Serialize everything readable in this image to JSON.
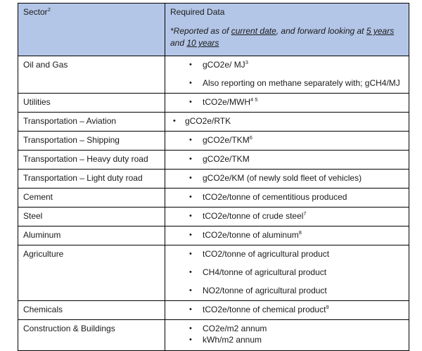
{
  "table": {
    "header_bg": "#b4c6e7",
    "border_color": "#000000",
    "header": {
      "sector_segments": [
        {
          "text": "Sector"
        },
        {
          "text": "2",
          "sup": true
        }
      ],
      "required_data_label": "Required Data",
      "note_segments": [
        {
          "text": "*Reported as of "
        },
        {
          "text": "current date",
          "underline": true
        },
        {
          "text": ", and forward looking at "
        },
        {
          "text": "5 years",
          "underline": true
        },
        {
          "text": " and "
        },
        {
          "text": "10 years",
          "underline": true
        }
      ]
    },
    "rows": [
      {
        "sector": "Oil and Gas",
        "bullets": [
          [
            {
              "text": "gCO2e/ MJ"
            },
            {
              "text": "3",
              "sup": true
            }
          ],
          [
            {
              "text": "Also reporting on methane separately with; gCH4/MJ"
            }
          ]
        ]
      },
      {
        "sector": "Utilities",
        "bullets": [
          [
            {
              "text": "tCO2e/MWH"
            },
            {
              "text": "4 5",
              "sup": true
            }
          ]
        ]
      },
      {
        "sector": "Transportation – Aviation",
        "indent": "small",
        "bullets": [
          [
            {
              "text": "gCO2e/RTK"
            }
          ]
        ]
      },
      {
        "sector": "Transportation – Shipping",
        "bullets": [
          [
            {
              "text": "gCO2e/TKM"
            },
            {
              "text": "6",
              "sup": true
            }
          ]
        ]
      },
      {
        "sector": "Transportation – Heavy duty road",
        "bullets": [
          [
            {
              "text": "gCO2e/TKM"
            }
          ]
        ]
      },
      {
        "sector": "Transportation – Light duty road",
        "bullets": [
          [
            {
              "text": "gCO2e/KM (of newly sold fleet of vehicles)"
            }
          ]
        ]
      },
      {
        "sector": "Cement",
        "bullets": [
          [
            {
              "text": "tCO2e/tonne of cementitious produced"
            }
          ]
        ]
      },
      {
        "sector": "Steel",
        "bullets": [
          [
            {
              "text": "tCO2e/tonne of crude steel"
            },
            {
              "text": "7",
              "sup": true
            }
          ]
        ]
      },
      {
        "sector": "Aluminum",
        "bullets": [
          [
            {
              "text": "tCO2e/tonne of aluminum"
            },
            {
              "text": "8",
              "sup": true
            }
          ]
        ]
      },
      {
        "sector": "Agriculture",
        "bullets": [
          [
            {
              "text": "tCO2/tonne of agricultural product"
            }
          ],
          [
            {
              "text": "CH4/tonne of agricultural product"
            }
          ],
          [
            {
              "text": "NO2/tonne of agricultural product"
            }
          ]
        ]
      },
      {
        "sector": "Chemicals",
        "bullets": [
          [
            {
              "text": "tCO2e/tonne of chemical product"
            },
            {
              "text": "9",
              "sup": true
            }
          ]
        ]
      },
      {
        "sector": "Construction & Buildings",
        "tight": true,
        "bullets": [
          [
            {
              "text": "CO2e/m2 annum"
            }
          ],
          [
            {
              "text": "kWh/m2 annum"
            }
          ]
        ]
      }
    ]
  }
}
